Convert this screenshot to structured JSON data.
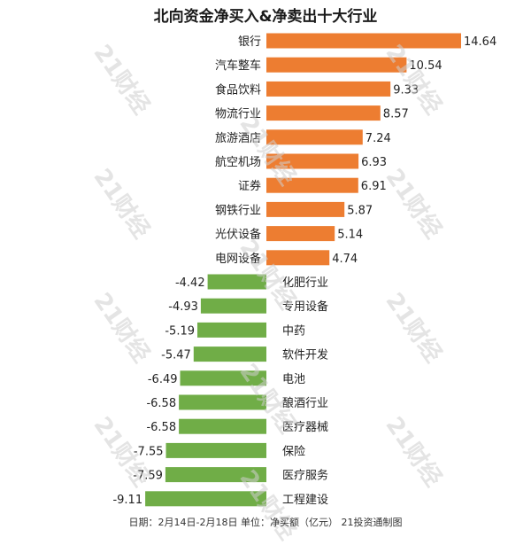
{
  "chart_data": {
    "type": "bar",
    "orientation": "horizontal",
    "title": "北向资金净买入&净卖出十大行业",
    "categories": [
      "银行",
      "汽车整车",
      "食品饮料",
      "物流行业",
      "旅游酒店",
      "航空机场",
      "证券",
      "钢铁行业",
      "光伏设备",
      "电网设备",
      "化肥行业",
      "专用设备",
      "中药",
      "软件开发",
      "电池",
      "酿酒行业",
      "医疗器械",
      "保险",
      "医疗服务",
      "工程建设"
    ],
    "value_labels": [
      "14.64",
      "10.54",
      "9.33",
      "8.57",
      "7.24",
      "6.93",
      "6.91",
      "5.87",
      "5.14",
      "4.74",
      "-4.42",
      "-4.93",
      "-5.19",
      "-5.47",
      "-6.49",
      "-6.58",
      "-6.58",
      "-7.55",
      "-7.59",
      "-9.11"
    ],
    "values": [
      14.64,
      10.54,
      9.33,
      8.57,
      7.24,
      6.93,
      6.91,
      5.87,
      5.14,
      4.74,
      -4.42,
      -4.93,
      -5.19,
      -5.47,
      -6.49,
      -6.58,
      -6.58,
      -7.55,
      -7.59,
      -9.11
    ],
    "colors": {
      "positive": "#ED7D31",
      "negative": "#70AD47"
    },
    "grid": false,
    "legend": "none",
    "footer": "日期：2月14日-2月18日 单位：净买额（亿元） 21投资通制图",
    "watermark": "21财经"
  }
}
